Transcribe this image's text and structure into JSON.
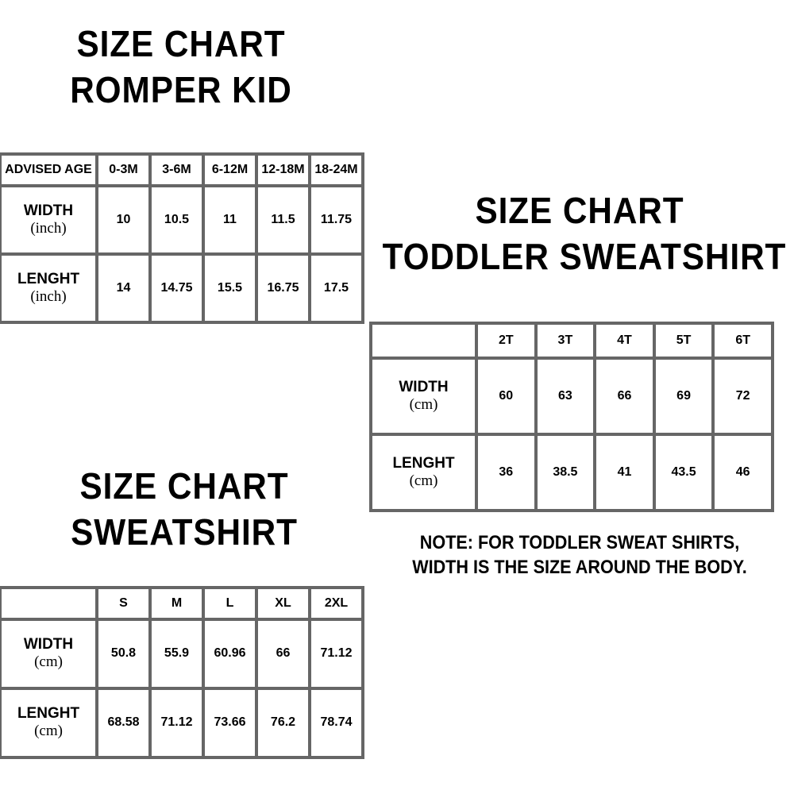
{
  "romper": {
    "title_line1": "SIZE CHART",
    "title_line2": "ROMPER KID",
    "header": [
      "ADVISED AGE",
      "0-3M",
      "3-6M",
      "6-12M",
      "12-18M",
      "18-24M"
    ],
    "rows": [
      {
        "label": "WIDTH",
        "unit": "(inch)",
        "values": [
          "10",
          "10.5",
          "11",
          "11.5",
          "11.75"
        ]
      },
      {
        "label": "LENGHT",
        "unit": "(inch)",
        "values": [
          "14",
          "14.75",
          "15.5",
          "16.75",
          "17.5"
        ]
      }
    ]
  },
  "toddler": {
    "title_line1": "SIZE CHART",
    "title_line2": "TODDLER SWEATSHIRT",
    "header": [
      "",
      "2T",
      "3T",
      "4T",
      "5T",
      "6T"
    ],
    "rows": [
      {
        "label": "WIDTH",
        "unit": "(cm)",
        "values": [
          "60",
          "63",
          "66",
          "69",
          "72"
        ]
      },
      {
        "label": "LENGHT",
        "unit": "(cm)",
        "values": [
          "36",
          "38.5",
          "41",
          "43.5",
          "46"
        ]
      }
    ],
    "note_line1": "NOTE: FOR TODDLER SWEAT SHIRTS,",
    "note_line2": "WIDTH IS THE SIZE AROUND THE BODY."
  },
  "sweatshirt": {
    "title_line1": "SIZE CHART",
    "title_line2": "SWEATSHIRT",
    "header": [
      "",
      "S",
      "M",
      "L",
      "XL",
      "2XL"
    ],
    "rows": [
      {
        "label": "WIDTH",
        "unit": "(cm)",
        "values": [
          "50.8",
          "55.9",
          "60.96",
          "66",
          "71.12"
        ]
      },
      {
        "label": "LENGHT",
        "unit": "(cm)",
        "values": [
          "68.58",
          "71.12",
          "73.66",
          "76.2",
          "78.74"
        ]
      }
    ]
  },
  "colors": {
    "border": "#666666",
    "text": "#000000",
    "background": "#ffffff"
  }
}
